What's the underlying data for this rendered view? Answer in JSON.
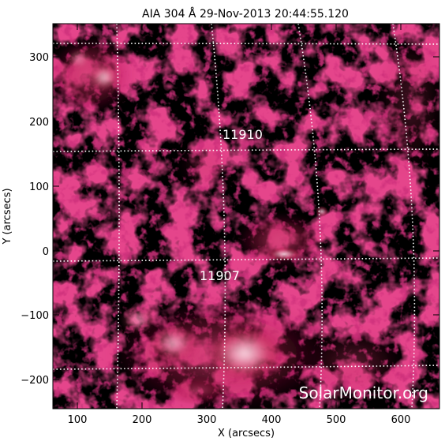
{
  "title": "AIA 304 Å 29-Nov-2013 20:44:55.120",
  "xlabel": "X (arcsecs)",
  "ylabel": "Y (arcsecs)",
  "x_ticks": [
    "100",
    "200",
    "300",
    "400",
    "500",
    "600"
  ],
  "y_ticks": [
    "300",
    "200",
    "100",
    "0",
    "−100",
    "−200"
  ],
  "x_tick_values": [
    100,
    200,
    300,
    400,
    500,
    600
  ],
  "y_tick_values": [
    300,
    200,
    100,
    0,
    -100,
    -200
  ],
  "x_range": [
    65,
    660
  ],
  "y_range": [
    -250,
    355
  ],
  "regions": [
    {
      "label": "11910",
      "x": 330,
      "y": 175
    },
    {
      "label": "11907",
      "x": 290,
      "y": -25
    }
  ],
  "watermark": "SolarMonitor.org",
  "colors": {
    "background": "#000000",
    "plasma": "#c01848",
    "plasma_bright": "#f8d8e0",
    "grid": "#ffffff"
  }
}
